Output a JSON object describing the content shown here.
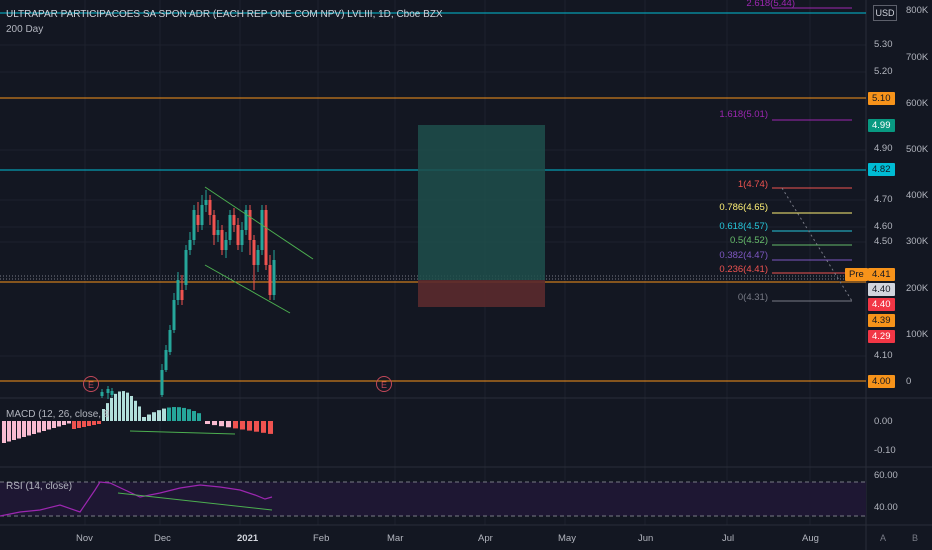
{
  "header": {
    "title": "ULTRAPAR PARTICIPACOES SA SPON ADR (EACH REP ONE COM NPV) LVLIII, 1D, Cboe BZX",
    "ma_label": "200 Day",
    "currency": "USD",
    "top_fib_label": "2.618(5.44)"
  },
  "price_axis": {
    "ticks": [
      "5.30",
      "5.20",
      "4.90",
      "4.70",
      "4.60",
      "4.50",
      "4.10"
    ],
    "tags": [
      {
        "label": "5.10",
        "color": "#f7931a",
        "text_color": "#131722"
      },
      {
        "label": "4.99",
        "color": "#089981",
        "text_color": "#ffffff"
      },
      {
        "label": "4.82",
        "color": "#00bcd4",
        "text_color": "#131722"
      },
      {
        "label": "Pre",
        "color": "#f7931a",
        "text_color": "#131722"
      },
      {
        "label": "4.41",
        "color": "#f7931a",
        "text_color": "#131722"
      },
      {
        "label": "4.40",
        "color": "#d1d4dc",
        "text_color": "#131722"
      },
      {
        "label": "4.40",
        "color": "#f23645",
        "text_color": "#ffffff"
      },
      {
        "label": "4.39",
        "color": "#f7931a",
        "text_color": "#131722"
      },
      {
        "label": "4.29",
        "color": "#f23645",
        "text_color": "#ffffff"
      },
      {
        "label": "4.00",
        "color": "#f7931a",
        "text_color": "#131722"
      }
    ]
  },
  "volume_axis": {
    "ticks": [
      "800K",
      "700K",
      "600K",
      "500K",
      "400K",
      "300K",
      "200K",
      "100K",
      "0"
    ]
  },
  "fibonacci": {
    "levels": [
      {
        "label": "1.618(5.01)",
        "color": "#9c27b0"
      },
      {
        "label": "1(4.74)",
        "color": "#ef5350"
      },
      {
        "label": "0.786(4.65)",
        "color": "#fff176"
      },
      {
        "label": "0.618(4.57)",
        "color": "#26c6da"
      },
      {
        "label": "0.5(4.52)",
        "color": "#66bb6a"
      },
      {
        "label": "0.382(4.47)",
        "color": "#7e57c2"
      },
      {
        "label": "0.236(4.41)",
        "color": "#ef5350"
      },
      {
        "label": "0(4.31)",
        "color": "#787b86"
      }
    ]
  },
  "earnings_markers": [
    "E",
    "E"
  ],
  "macd": {
    "label": "MACD (12, 26, close, 9",
    "ticks": [
      "0.00",
      "-0.10"
    ]
  },
  "rsi": {
    "label": "RSI (14, close)",
    "ticks": [
      "60.00",
      "40.00"
    ]
  },
  "time_axis": {
    "ticks": [
      "Nov",
      "Dec",
      "2021",
      "Feb",
      "Mar",
      "Apr",
      "May",
      "Jun",
      "Jul",
      "Aug"
    ]
  },
  "bottom_controls": {
    "auto_label": "A",
    "log_label": "B"
  },
  "colors": {
    "up": "#26a69a",
    "down": "#ef5350",
    "orange_line": "#f7931a",
    "cyan_line": "#00bcd4",
    "channel": "#4caf50",
    "rsi_line": "#9c27b0"
  }
}
